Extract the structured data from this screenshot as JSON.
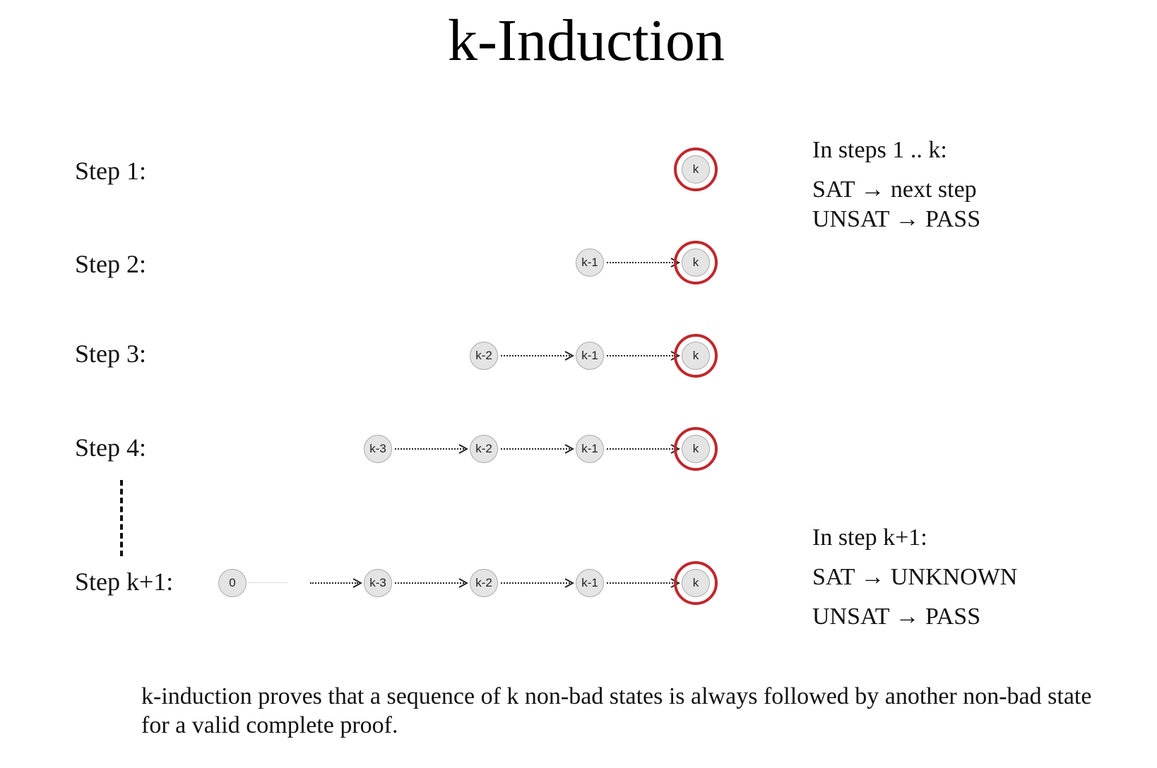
{
  "title": "k-Induction",
  "steps": [
    {
      "label": "Step 1:"
    },
    {
      "label": "Step 2:"
    },
    {
      "label": "Step 3:"
    },
    {
      "label": "Step 4:"
    },
    {
      "label": "Step k+1:"
    }
  ],
  "nodes": {
    "k": "k",
    "k1": "k-1",
    "k2": "k-2",
    "k3": "k-3",
    "zero": "0"
  },
  "notes": {
    "steps_1_k": {
      "title": "In steps 1 .. k:",
      "sat": "SAT → next step",
      "unsat": "UNSAT → PASS"
    },
    "step_k1": {
      "title": "In step k+1:",
      "sat": "SAT → UNKNOWN",
      "unsat": "UNSAT → PASS"
    }
  },
  "caption": {
    "line1": "k-induction proves that a sequence of k non-bad states is always followed by another non-bad state",
    "line2": "for a valid complete proof."
  },
  "colors": {
    "bad_state_ring": "#c1272d",
    "node_fill": "#e4e4e4"
  }
}
